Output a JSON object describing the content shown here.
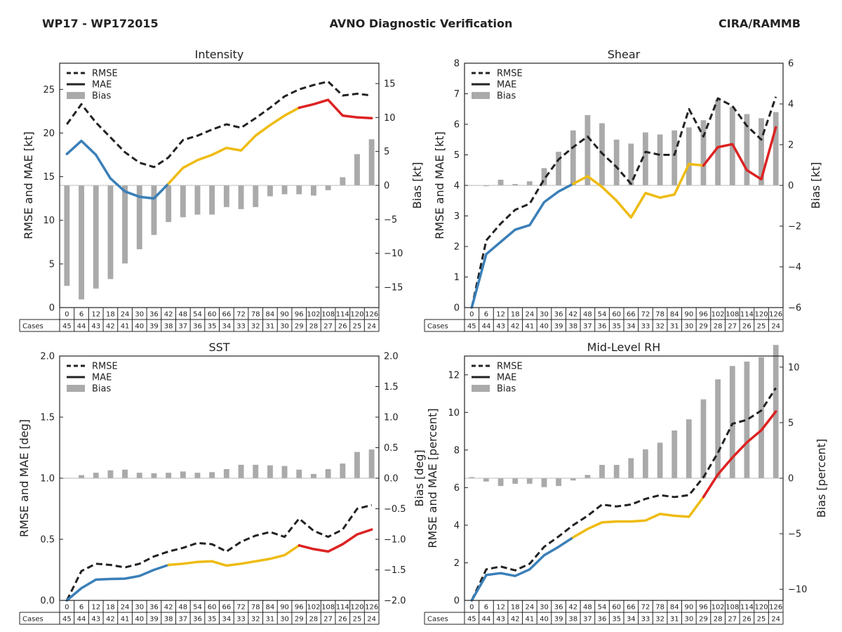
{
  "header": {
    "left": "WP17 - WP172015",
    "center": "AVNO Diagnostic Verification",
    "right": "CIRA/RAMMB"
  },
  "colors": {
    "rmse": "#222222",
    "mae_early": "#3a7fb8",
    "mae_mid": "#eebb11",
    "mae_late": "#dd2222",
    "bias": "#aaaaaa"
  },
  "chart_data": [
    {
      "type": "line",
      "title": "Intensity",
      "ylabel": "RMSE and MAE [kt]",
      "y2label": "Bias [kt]",
      "ylim": [
        0,
        28
      ],
      "y2lim": [
        -18,
        18
      ],
      "yticks": [
        0,
        5,
        10,
        15,
        20,
        25
      ],
      "y2ticks": [
        -15,
        -10,
        -5,
        0,
        5,
        10,
        15
      ],
      "y2ticklabels": [
        "−15",
        "−10",
        "−5",
        "0",
        "5",
        "10",
        "15"
      ],
      "grid": false,
      "legend": {
        "location": "top-left",
        "entries": [
          "RMSE",
          "MAE",
          "Bias"
        ]
      },
      "cases_label": "Cases",
      "categories": [
        "0",
        "6",
        "12",
        "18",
        "24",
        "30",
        "36",
        "42",
        "48",
        "54",
        "60",
        "66",
        "72",
        "78",
        "84",
        "90",
        "96",
        "102",
        "108",
        "114",
        "120",
        "126"
      ],
      "cases": [
        "45",
        "44",
        "43",
        "42",
        "41",
        "40",
        "39",
        "38",
        "37",
        "36",
        "35",
        "34",
        "33",
        "32",
        "31",
        "30",
        "29",
        "28",
        "27",
        "26",
        "25",
        "24"
      ],
      "series": [
        {
          "name": "RMSE",
          "values": [
            21.0,
            23.3,
            21.2,
            19.5,
            17.8,
            16.6,
            16.1,
            17.2,
            19.2,
            19.7,
            20.4,
            21.0,
            20.6,
            21.7,
            22.9,
            24.2,
            25.0,
            25.5,
            25.9,
            24.3,
            24.5,
            24.3
          ]
        },
        {
          "name": "MAE",
          "values": [
            17.6,
            19.1,
            17.5,
            14.8,
            13.3,
            12.7,
            12.5,
            14.2,
            16.0,
            16.9,
            17.5,
            18.3,
            18.0,
            19.7,
            20.9,
            22.0,
            22.9,
            23.3,
            23.8,
            22.0,
            21.8,
            21.7
          ]
        },
        {
          "name": "Bias",
          "values": [
            -14.8,
            -16.8,
            -15.2,
            -13.8,
            -11.5,
            -9.4,
            -7.3,
            -5.4,
            -4.7,
            -4.3,
            -4.3,
            -3.2,
            -3.5,
            -3.2,
            -1.6,
            -1.3,
            -1.3,
            -1.5,
            -0.7,
            1.2,
            4.6,
            6.8
          ]
        }
      ]
    },
    {
      "type": "line",
      "title": "Shear",
      "ylabel": "RMSE and MAE [kt]",
      "y2label": "Bias [kt]",
      "ylim": [
        0,
        8
      ],
      "y2lim": [
        -6,
        6
      ],
      "yticks": [
        0,
        1,
        2,
        3,
        4,
        5,
        6,
        7,
        8
      ],
      "y2ticks": [
        -6,
        -4,
        -2,
        0,
        2,
        4,
        6
      ],
      "y2ticklabels": [
        "−6",
        "−4",
        "−2",
        "0",
        "2",
        "4",
        "6"
      ],
      "grid": false,
      "legend": {
        "location": "top-left",
        "entries": [
          "RMSE",
          "MAE",
          "Bias"
        ]
      },
      "cases_label": "Cases",
      "categories": [
        "0",
        "6",
        "12",
        "18",
        "24",
        "30",
        "36",
        "42",
        "48",
        "54",
        "60",
        "66",
        "72",
        "78",
        "84",
        "90",
        "96",
        "102",
        "108",
        "114",
        "120",
        "126"
      ],
      "cases": [
        "45",
        "44",
        "43",
        "42",
        "41",
        "40",
        "39",
        "38",
        "37",
        "36",
        "35",
        "34",
        "33",
        "32",
        "31",
        "30",
        "29",
        "28",
        "27",
        "26",
        "25",
        "24"
      ],
      "series": [
        {
          "name": "RMSE",
          "values": [
            0.0,
            2.2,
            2.75,
            3.2,
            3.4,
            4.2,
            4.85,
            5.25,
            5.6,
            5.05,
            4.6,
            4.05,
            5.1,
            5.0,
            5.0,
            6.5,
            5.6,
            6.85,
            6.6,
            5.95,
            5.5,
            6.9
          ]
        },
        {
          "name": "MAE",
          "values": [
            0.0,
            1.75,
            2.15,
            2.55,
            2.7,
            3.45,
            3.8,
            4.05,
            4.3,
            3.95,
            3.5,
            2.95,
            3.75,
            3.6,
            3.7,
            4.7,
            4.65,
            5.25,
            5.35,
            4.5,
            4.2,
            5.9
          ]
        },
        {
          "name": "Bias",
          "values": [
            -0.02,
            -0.04,
            0.28,
            0.07,
            0.2,
            0.85,
            1.65,
            2.7,
            3.45,
            3.05,
            2.25,
            2.05,
            2.6,
            2.5,
            2.7,
            2.85,
            3.2,
            4.2,
            3.85,
            3.5,
            3.3,
            3.6
          ]
        }
      ]
    },
    {
      "type": "line",
      "title": "SST",
      "ylabel": "RMSE and MAE [deg]",
      "y2label": "Bias [deg]",
      "ylim": [
        0,
        2
      ],
      "y2lim": [
        -2,
        2
      ],
      "yticks": [
        0,
        0.5,
        1,
        1.5,
        2
      ],
      "yticklabels": [
        "0.0",
        "0.5",
        "1.0",
        "1.5",
        "2.0"
      ],
      "y2ticks": [
        -2,
        -1.5,
        -1,
        -0.5,
        0,
        0.5,
        1,
        1.5,
        2
      ],
      "y2ticklabels": [
        "−2.0",
        "−1.5",
        "−1.0",
        "−0.5",
        "0.0",
        "0.5",
        "1.0",
        "1.5",
        "2.0"
      ],
      "grid": false,
      "legend": {
        "location": "top-left",
        "entries": [
          "RMSE",
          "MAE",
          "Bias"
        ]
      },
      "cases_label": "Cases",
      "categories": [
        "0",
        "6",
        "12",
        "18",
        "24",
        "30",
        "36",
        "42",
        "48",
        "54",
        "60",
        "66",
        "72",
        "78",
        "84",
        "90",
        "96",
        "102",
        "108",
        "114",
        "120",
        "126"
      ],
      "cases": [
        "45",
        "44",
        "43",
        "42",
        "41",
        "40",
        "39",
        "38",
        "37",
        "36",
        "35",
        "34",
        "33",
        "32",
        "31",
        "30",
        "29",
        "28",
        "27",
        "26",
        "25",
        "24"
      ],
      "series": [
        {
          "name": "RMSE",
          "values": [
            0.0,
            0.24,
            0.3,
            0.29,
            0.27,
            0.3,
            0.36,
            0.4,
            0.43,
            0.47,
            0.46,
            0.4,
            0.48,
            0.53,
            0.56,
            0.52,
            0.67,
            0.57,
            0.52,
            0.58,
            0.75,
            0.78
          ]
        },
        {
          "name": "MAE",
          "values": [
            0.0,
            0.1,
            0.17,
            0.175,
            0.178,
            0.2,
            0.25,
            0.29,
            0.3,
            0.315,
            0.32,
            0.285,
            0.3,
            0.32,
            0.34,
            0.37,
            0.45,
            0.42,
            0.4,
            0.46,
            0.54,
            0.58
          ]
        },
        {
          "name": "Bias",
          "values": [
            0.0,
            0.05,
            0.09,
            0.13,
            0.14,
            0.09,
            0.08,
            0.09,
            0.11,
            0.09,
            0.1,
            0.15,
            0.22,
            0.22,
            0.21,
            0.2,
            0.14,
            0.07,
            0.15,
            0.24,
            0.43,
            0.47
          ]
        }
      ]
    },
    {
      "type": "line",
      "title": "Mid-Level RH",
      "ylabel": "RMSE and MAE [percent]",
      "y2label": "Bias [percent]",
      "ylim": [
        0,
        13
      ],
      "y2lim": [
        -11,
        11
      ],
      "yticks": [
        0,
        2,
        4,
        6,
        8,
        10,
        12
      ],
      "y2ticks": [
        -10,
        -5,
        0,
        5,
        10
      ],
      "y2ticklabels": [
        "−10",
        "−5",
        "0",
        "5",
        "10"
      ],
      "grid": false,
      "legend": {
        "location": "top-left",
        "entries": [
          "RMSE",
          "MAE",
          "Bias"
        ]
      },
      "cases_label": "Cases",
      "categories": [
        "0",
        "6",
        "12",
        "18",
        "24",
        "30",
        "36",
        "42",
        "48",
        "54",
        "60",
        "66",
        "72",
        "78",
        "84",
        "90",
        "96",
        "102",
        "108",
        "114",
        "120",
        "126"
      ],
      "cases": [
        "45",
        "44",
        "43",
        "42",
        "41",
        "40",
        "39",
        "38",
        "37",
        "36",
        "35",
        "34",
        "33",
        "32",
        "31",
        "30",
        "29",
        "28",
        "27",
        "26",
        "25",
        "24"
      ],
      "series": [
        {
          "name": "RMSE",
          "values": [
            0.0,
            1.65,
            1.8,
            1.6,
            1.95,
            2.85,
            3.4,
            4.0,
            4.5,
            5.1,
            5.0,
            5.1,
            5.4,
            5.6,
            5.5,
            5.6,
            6.55,
            7.85,
            9.4,
            9.6,
            10.1,
            11.3
          ]
        },
        {
          "name": "MAE",
          "values": [
            0.0,
            1.35,
            1.45,
            1.3,
            1.65,
            2.4,
            2.85,
            3.35,
            3.8,
            4.15,
            4.2,
            4.2,
            4.25,
            4.6,
            4.5,
            4.45,
            5.5,
            6.7,
            7.6,
            8.4,
            9.05,
            10.05
          ]
        },
        {
          "name": "Bias",
          "values": [
            0.1,
            -0.3,
            -0.7,
            -0.5,
            -0.5,
            -0.8,
            -0.7,
            -0.2,
            0.3,
            1.2,
            1.2,
            1.8,
            2.6,
            3.2,
            4.3,
            5.3,
            7.1,
            8.9,
            10.1,
            10.5,
            10.9,
            12.0
          ]
        }
      ]
    }
  ]
}
